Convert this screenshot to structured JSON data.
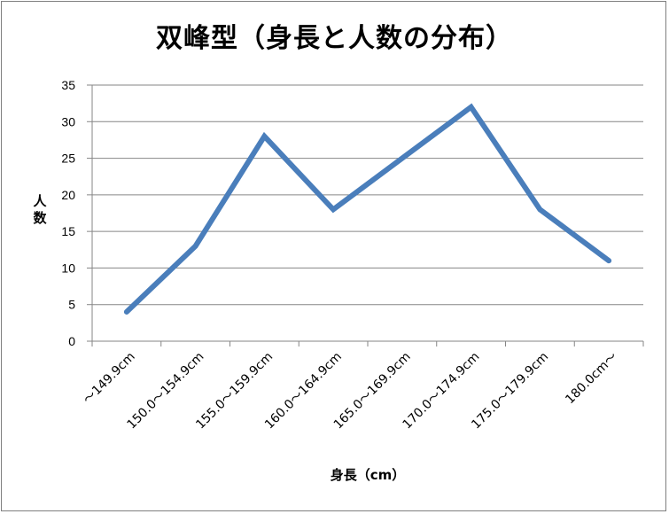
{
  "chart_data": {
    "type": "line",
    "title": "双峰型（身長と人数の分布）",
    "xlabel": "身長（cm）",
    "ylabel": "人数",
    "categories": [
      "～149.9cm",
      "150.0～154.9cm",
      "155.0～159.9cm",
      "160.0～164.9cm",
      "165.0～169.9cm",
      "170.0～174.9cm",
      "175.0～179.9cm",
      "180.0cm～"
    ],
    "series": [
      {
        "values": [
          4,
          13,
          28,
          18,
          25,
          32,
          18,
          11
        ]
      }
    ],
    "ylim": [
      0,
      35
    ],
    "yticks": [
      0,
      5,
      10,
      15,
      20,
      25,
      30,
      35
    ],
    "grid": true,
    "legend": "none",
    "colors": {
      "line": "#4a7ebb",
      "grid": "#868686",
      "axis": "#868686"
    }
  }
}
